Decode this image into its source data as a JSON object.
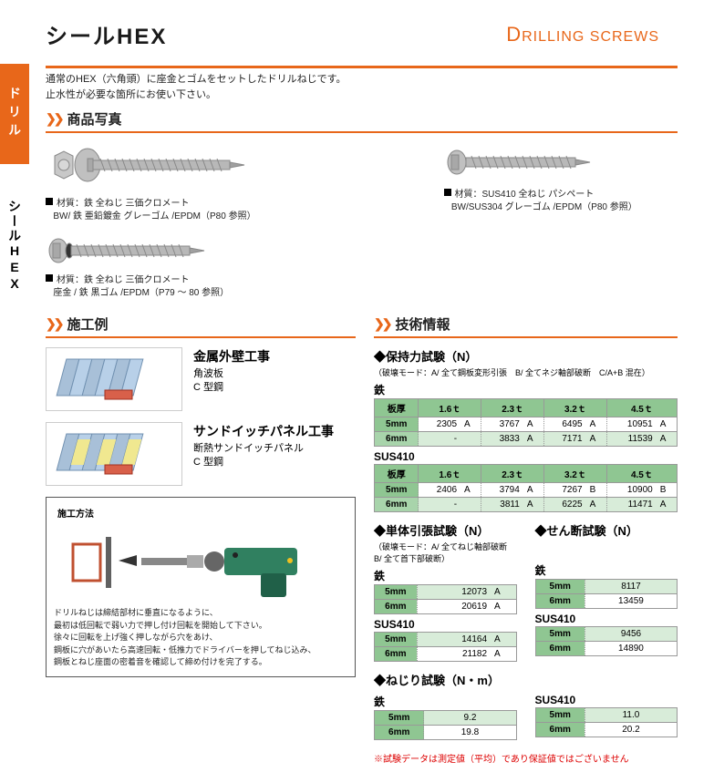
{
  "side_tabs": {
    "orange": "ドリル",
    "gray": "シールHEX"
  },
  "title": "シールHEX",
  "subtitle_en": "DRILLING SCREWS",
  "description": "通常のHEX（六角頭）に座金とゴムをセットしたドリルねじです。\n止水性が必要な箇所にお使い下さい。",
  "section_photos": "商品写真",
  "materials": [
    "材質：鉄 全ねじ 三価クロメート\nBW/ 鉄 亜鉛鍍金 グレーゴム /EPDM（P80 参照）",
    "材質：SUS410 全ねじ パシペート\nBW/SUS304 グレーゴム /EPDM（P80 参照）",
    "材質：鉄 全ねじ 三価クロメート\n座金 / 鉄 黒ゴム /EPDM（P79 ～ 80 参照）"
  ],
  "section_app": "施工例",
  "apps": [
    {
      "title": "金属外壁工事",
      "subs": [
        "角波板",
        "C 型鋼"
      ]
    },
    {
      "title": "サンドイッチパネル工事",
      "subs": [
        "断熱サンドイッチパネル",
        "C 型鋼"
      ]
    }
  ],
  "method_title": "施工方法",
  "method_text": [
    "ドリルねじは締結部材に垂直になるように、",
    "最初は低回転で弱い力で押し付け回転を開始して下さい。",
    "徐々に回転を上げ強く押しながら穴をあけ、",
    "鋼板に穴があいたら高速回転・低推力でドライバーを押してねじ込み、",
    "鋼板とねじ座面の密着音を確認して締め付けを完了する。"
  ],
  "section_tech": "技術情報",
  "test1": {
    "title": "◆保持力試験（N）",
    "note": "（破壊モード：A/ 全て鋼板変形引張　B/ 全てネジ軸部破断　C/A+B 混在）",
    "mat1": "鉄",
    "mat2": "SUS410",
    "header_t": "板厚",
    "cols": [
      "1.6ｔ",
      "2.3ｔ",
      "3.2ｔ",
      "4.5ｔ"
    ],
    "steel": [
      {
        "t": "5mm",
        "v": [
          [
            "2305",
            "A"
          ],
          [
            "3767",
            "A"
          ],
          [
            "6495",
            "A"
          ],
          [
            "10951",
            "A"
          ]
        ]
      },
      {
        "t": "6mm",
        "v": [
          [
            "-",
            ""
          ],
          [
            "3833",
            "A"
          ],
          [
            "7171",
            "A"
          ],
          [
            "11539",
            "A"
          ]
        ]
      }
    ],
    "sus": [
      {
        "t": "5mm",
        "v": [
          [
            "2406",
            "A"
          ],
          [
            "3794",
            "A"
          ],
          [
            "7267",
            "B"
          ],
          [
            "10900",
            "B"
          ]
        ]
      },
      {
        "t": "6mm",
        "v": [
          [
            "-",
            ""
          ],
          [
            "3811",
            "A"
          ],
          [
            "6225",
            "A"
          ],
          [
            "11471",
            "A"
          ]
        ]
      }
    ]
  },
  "test2": {
    "title": "◆単体引張試験（N）",
    "note": "（破壊モード：A/ 全てねじ軸部破断\nB/ 全て首下部破断）",
    "mat1": "鉄",
    "mat2": "SUS410",
    "steel": [
      {
        "t": "5mm",
        "v": [
          "12073",
          "A"
        ]
      },
      {
        "t": "6mm",
        "v": [
          "20619",
          "A"
        ]
      }
    ],
    "sus": [
      {
        "t": "5mm",
        "v": [
          "14164",
          "A"
        ]
      },
      {
        "t": "6mm",
        "v": [
          "21182",
          "A"
        ]
      }
    ]
  },
  "test3": {
    "title": "◆せん断試験（N）",
    "mat1": "鉄",
    "mat2": "SUS410",
    "steel": [
      {
        "t": "5mm",
        "v": "8117"
      },
      {
        "t": "6mm",
        "v": "13459"
      }
    ],
    "sus": [
      {
        "t": "5mm",
        "v": "9456"
      },
      {
        "t": "6mm",
        "v": "14890"
      }
    ]
  },
  "test4": {
    "title": "◆ねじり試験（N・m）",
    "mat1": "鉄",
    "mat2": "SUS410",
    "steel": [
      {
        "t": "5mm",
        "v": "9.2"
      },
      {
        "t": "6mm",
        "v": "19.8"
      }
    ],
    "sus": [
      {
        "t": "5mm",
        "v": "11.0"
      },
      {
        "t": "6mm",
        "v": "20.2"
      }
    ]
  },
  "disclaimer": "※試験データは測定値（平均）であり保証値ではございません",
  "colors": {
    "accent": "#e8671a",
    "table_header": "#8fc692",
    "table_alt": "#d8ecd9"
  }
}
